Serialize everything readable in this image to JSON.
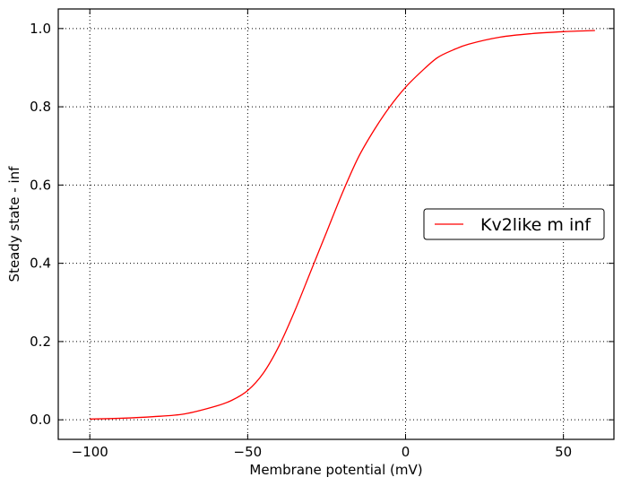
{
  "chart_data": {
    "type": "line",
    "title": "",
    "xlabel": "Membrane potential (mV)",
    "ylabel": "Steady state - inf",
    "xlim": [
      -110,
      66
    ],
    "ylim": [
      -0.05,
      1.05
    ],
    "xticks": [
      -100,
      -50,
      0,
      50
    ],
    "xtick_labels": [
      "−100",
      "−50",
      "0",
      "50"
    ],
    "yticks": [
      0.0,
      0.2,
      0.4,
      0.6,
      0.8,
      1.0
    ],
    "ytick_labels": [
      "0.0",
      "0.2",
      "0.4",
      "0.6",
      "0.8",
      "1.0"
    ],
    "grid": true,
    "legend_position": "center-right",
    "series": [
      {
        "name": "Kv2like m inf",
        "color": "#ff0000",
        "x": [
          -100,
          -90,
          -80,
          -70,
          -60,
          -55,
          -50,
          -45,
          -40,
          -35,
          -30,
          -25,
          -20,
          -15,
          -10,
          -5,
          0,
          5,
          10,
          15,
          20,
          30,
          40,
          50,
          60
        ],
        "y": [
          0.002,
          0.004,
          0.008,
          0.015,
          0.035,
          0.05,
          0.075,
          0.12,
          0.19,
          0.28,
          0.38,
          0.48,
          0.58,
          0.67,
          0.74,
          0.8,
          0.85,
          0.89,
          0.925,
          0.945,
          0.96,
          0.978,
          0.987,
          0.992,
          0.995
        ]
      }
    ]
  }
}
